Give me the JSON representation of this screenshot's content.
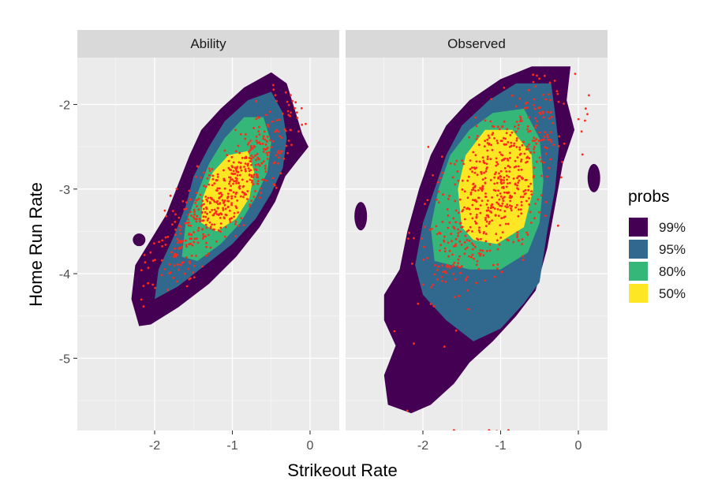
{
  "chart_data": {
    "type": "contour-density-scatter",
    "xlabel": "Strikeout Rate",
    "ylabel": "Home Run Rate",
    "x_ticks": [
      "-2",
      "-1",
      "0"
    ],
    "y_ticks": [
      "-2",
      "-3",
      "-4",
      "-5"
    ],
    "xlim": [
      -2.95,
      0.4
    ],
    "ylim": [
      -5.85,
      -1.45
    ],
    "grid": true,
    "facets": [
      {
        "label": "Ability",
        "x_range": [
          -2.25,
          -0.05
        ],
        "y_range": [
          -4.65,
          -1.65
        ],
        "center": [
          -1.05,
          -3.0
        ],
        "points_approx": 550
      },
      {
        "label": "Observed",
        "x_range": [
          -2.65,
          0.25
        ],
        "y_range": [
          -5.75,
          -1.55
        ],
        "center": [
          -1.05,
          -2.9
        ],
        "points_approx": 650
      }
    ],
    "legend": {
      "title": "probs",
      "position": "right",
      "entries": [
        {
          "label": "99%",
          "color": "#440154"
        },
        {
          "label": "95%",
          "color": "#31688E"
        },
        {
          "label": "80%",
          "color": "#35B779"
        },
        {
          "label": "50%",
          "color": "#FDE725"
        }
      ]
    },
    "point_color": "#FF2A1A"
  },
  "colors": {
    "panel_bg": "#EBEBEB",
    "strip_bg": "#D9D9D9",
    "grid_major": "#FFFFFF"
  }
}
